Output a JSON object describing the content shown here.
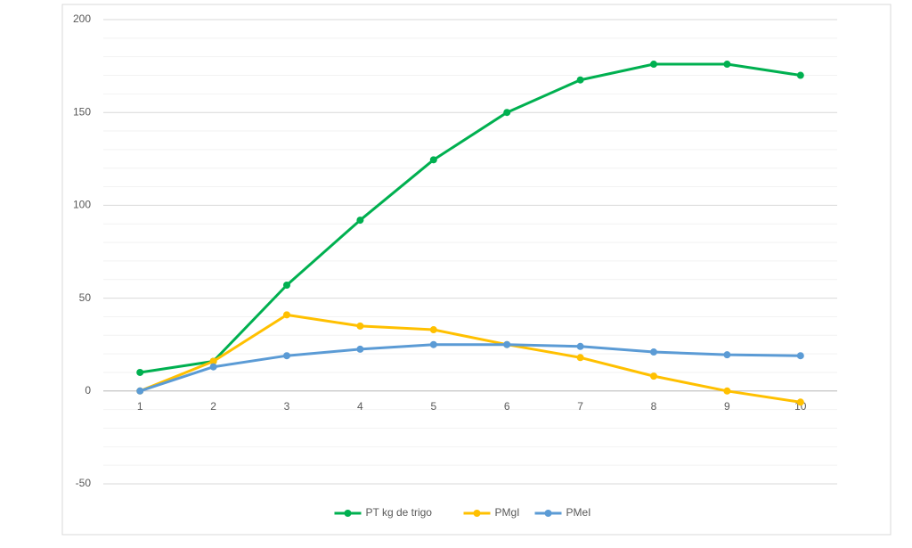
{
  "chart_data": {
    "type": "line",
    "categories": [
      "1",
      "2",
      "3",
      "4",
      "5",
      "6",
      "7",
      "8",
      "9",
      "10"
    ],
    "series": [
      {
        "name": "PT kg de trigo",
        "color": "#00b050",
        "values": [
          10,
          16,
          57,
          92,
          124.5,
          150,
          167.5,
          176,
          176,
          170
        ]
      },
      {
        "name": "PMgI",
        "color": "#ffc000",
        "values": [
          0,
          16,
          41,
          35,
          33,
          25,
          18,
          8,
          0,
          -6
        ]
      },
      {
        "name": "PMeI",
        "color": "#5b9bd5",
        "values": [
          0,
          13,
          19,
          22.5,
          25,
          25,
          24,
          21,
          19.5,
          19
        ]
      }
    ],
    "ylim": [
      -50,
      200
    ],
    "yticks": [
      -50,
      0,
      50,
      100,
      150,
      200
    ],
    "minor_yticks": [
      -40,
      -30,
      -20,
      -10,
      10,
      20,
      30,
      40,
      60,
      70,
      80,
      90,
      110,
      120,
      130,
      140,
      160,
      170,
      180,
      190
    ],
    "grid": true,
    "legend": "bottom"
  }
}
